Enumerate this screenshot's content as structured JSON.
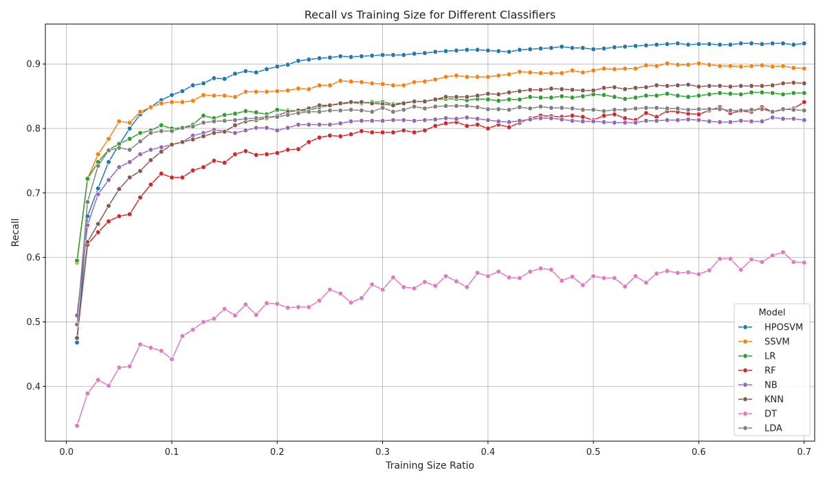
{
  "chart_data": {
    "type": "line",
    "title": "Recall vs Training Size for Different Classifiers",
    "xlabel": "Training Size Ratio",
    "ylabel": "Recall",
    "xlim": [
      -0.02,
      0.71
    ],
    "ylim": [
      0.315,
      0.962
    ],
    "xticks": [
      0.0,
      0.1,
      0.2,
      0.3,
      0.4,
      0.5,
      0.6,
      0.7
    ],
    "xtick_labels": [
      "0.0",
      "0.1",
      "0.2",
      "0.3",
      "0.4",
      "0.5",
      "0.6",
      "0.7"
    ],
    "yticks": [
      0.4,
      0.5,
      0.6,
      0.7,
      0.8,
      0.9
    ],
    "ytick_labels": [
      "0.4",
      "0.5",
      "0.6",
      "0.7",
      "0.8",
      "0.9"
    ],
    "grid": true,
    "legend": {
      "title": "Model",
      "placement": "bottom-right"
    },
    "x": [
      0.01,
      0.02,
      0.03,
      0.04,
      0.05,
      0.06,
      0.07,
      0.08,
      0.09,
      0.1,
      0.11,
      0.12,
      0.13,
      0.14,
      0.15,
      0.16,
      0.17,
      0.18,
      0.19,
      0.2,
      0.21,
      0.22,
      0.23,
      0.24,
      0.25,
      0.26,
      0.27,
      0.28,
      0.29,
      0.3,
      0.31,
      0.32,
      0.33,
      0.34,
      0.35,
      0.36,
      0.37,
      0.38,
      0.39,
      0.4,
      0.41,
      0.42,
      0.43,
      0.44,
      0.45,
      0.46,
      0.47,
      0.48,
      0.49,
      0.5,
      0.51,
      0.52,
      0.53,
      0.54,
      0.55,
      0.56,
      0.57,
      0.58,
      0.59,
      0.6,
      0.61,
      0.62,
      0.63,
      0.64,
      0.65,
      0.66,
      0.67,
      0.68,
      0.69,
      0.7
    ],
    "series": [
      {
        "name": "HPOSVM",
        "color": "#1f77b4",
        "values": [
          0.468,
          0.664,
          0.707,
          0.748,
          0.775,
          0.8,
          0.822,
          0.834,
          0.844,
          0.852,
          0.858,
          0.867,
          0.87,
          0.878,
          0.877,
          0.885,
          0.889,
          0.887,
          0.892,
          0.896,
          0.899,
          0.905,
          0.907,
          0.909,
          0.91,
          0.912,
          0.911,
          0.912,
          0.913,
          0.914,
          0.914,
          0.914,
          0.916,
          0.917,
          0.919,
          0.92,
          0.921,
          0.922,
          0.922,
          0.921,
          0.92,
          0.919,
          0.922,
          0.923,
          0.924,
          0.925,
          0.927,
          0.925,
          0.925,
          0.923,
          0.924,
          0.926,
          0.927,
          0.928,
          0.929,
          0.93,
          0.931,
          0.932,
          0.93,
          0.931,
          0.931,
          0.93,
          0.93,
          0.932,
          0.932,
          0.931,
          0.932,
          0.932,
          0.93,
          0.932
        ]
      },
      {
        "name": "SSVM",
        "color": "#ff7f0e",
        "values": [
          0.592,
          0.722,
          0.76,
          0.784,
          0.811,
          0.809,
          0.826,
          0.833,
          0.839,
          0.841,
          0.841,
          0.843,
          0.852,
          0.851,
          0.851,
          0.849,
          0.857,
          0.857,
          0.857,
          0.858,
          0.859,
          0.862,
          0.861,
          0.867,
          0.867,
          0.874,
          0.873,
          0.872,
          0.87,
          0.869,
          0.867,
          0.867,
          0.872,
          0.873,
          0.876,
          0.88,
          0.882,
          0.88,
          0.88,
          0.88,
          0.882,
          0.884,
          0.888,
          0.887,
          0.886,
          0.886,
          0.886,
          0.89,
          0.887,
          0.89,
          0.893,
          0.892,
          0.893,
          0.893,
          0.898,
          0.897,
          0.901,
          0.899,
          0.899,
          0.901,
          0.899,
          0.897,
          0.897,
          0.896,
          0.897,
          0.898,
          0.896,
          0.897,
          0.894,
          0.893
        ]
      },
      {
        "name": "LR",
        "color": "#2ca02c",
        "values": [
          0.595,
          0.722,
          0.748,
          0.767,
          0.776,
          0.784,
          0.793,
          0.797,
          0.805,
          0.8,
          0.801,
          0.806,
          0.82,
          0.816,
          0.821,
          0.823,
          0.827,
          0.825,
          0.822,
          0.829,
          0.828,
          0.827,
          0.828,
          0.833,
          0.836,
          0.838,
          0.84,
          0.839,
          0.841,
          0.841,
          0.838,
          0.84,
          0.842,
          0.842,
          0.845,
          0.846,
          0.846,
          0.844,
          0.846,
          0.845,
          0.843,
          0.845,
          0.845,
          0.849,
          0.848,
          0.848,
          0.85,
          0.848,
          0.85,
          0.853,
          0.852,
          0.849,
          0.846,
          0.848,
          0.851,
          0.851,
          0.854,
          0.851,
          0.849,
          0.851,
          0.853,
          0.855,
          0.854,
          0.853,
          0.856,
          0.856,
          0.855,
          0.853,
          0.855,
          0.855
        ]
      },
      {
        "name": "RF",
        "color": "#d62728",
        "values": [
          0.475,
          0.62,
          0.639,
          0.656,
          0.664,
          0.667,
          0.693,
          0.713,
          0.73,
          0.724,
          0.724,
          0.735,
          0.74,
          0.75,
          0.747,
          0.76,
          0.765,
          0.759,
          0.76,
          0.762,
          0.767,
          0.768,
          0.779,
          0.786,
          0.789,
          0.788,
          0.791,
          0.796,
          0.794,
          0.794,
          0.794,
          0.797,
          0.794,
          0.797,
          0.804,
          0.808,
          0.81,
          0.804,
          0.806,
          0.8,
          0.806,
          0.802,
          0.809,
          0.816,
          0.82,
          0.819,
          0.818,
          0.82,
          0.818,
          0.813,
          0.82,
          0.822,
          0.816,
          0.813,
          0.824,
          0.818,
          0.827,
          0.826,
          0.823,
          0.822,
          0.828,
          0.833,
          0.824,
          0.827,
          0.826,
          0.833,
          0.826,
          0.829,
          0.831,
          0.841
        ]
      },
      {
        "name": "NB",
        "color": "#9467bd",
        "values": [
          0.51,
          0.65,
          0.698,
          0.72,
          0.74,
          0.748,
          0.76,
          0.767,
          0.771,
          0.775,
          0.779,
          0.789,
          0.793,
          0.798,
          0.796,
          0.793,
          0.797,
          0.801,
          0.801,
          0.797,
          0.801,
          0.806,
          0.806,
          0.806,
          0.806,
          0.808,
          0.811,
          0.812,
          0.812,
          0.812,
          0.813,
          0.813,
          0.812,
          0.813,
          0.814,
          0.816,
          0.815,
          0.817,
          0.815,
          0.813,
          0.811,
          0.81,
          0.812,
          0.814,
          0.816,
          0.816,
          0.814,
          0.812,
          0.811,
          0.811,
          0.81,
          0.809,
          0.809,
          0.809,
          0.812,
          0.812,
          0.813,
          0.813,
          0.814,
          0.813,
          0.811,
          0.81,
          0.81,
          0.812,
          0.811,
          0.811,
          0.817,
          0.815,
          0.815,
          0.813
        ]
      },
      {
        "name": "KNN",
        "color": "#8c564b",
        "values": [
          0.475,
          0.624,
          0.652,
          0.68,
          0.706,
          0.724,
          0.734,
          0.751,
          0.764,
          0.775,
          0.779,
          0.783,
          0.788,
          0.793,
          0.795,
          0.805,
          0.811,
          0.813,
          0.816,
          0.82,
          0.826,
          0.828,
          0.831,
          0.836,
          0.836,
          0.839,
          0.841,
          0.841,
          0.839,
          0.838,
          0.836,
          0.839,
          0.842,
          0.842,
          0.845,
          0.849,
          0.849,
          0.849,
          0.851,
          0.854,
          0.853,
          0.856,
          0.858,
          0.86,
          0.86,
          0.862,
          0.861,
          0.86,
          0.859,
          0.859,
          0.863,
          0.864,
          0.861,
          0.863,
          0.864,
          0.867,
          0.866,
          0.867,
          0.868,
          0.865,
          0.866,
          0.866,
          0.865,
          0.866,
          0.866,
          0.866,
          0.867,
          0.87,
          0.871,
          0.87
        ]
      },
      {
        "name": "DT",
        "color": "#e377c2",
        "values": [
          0.339,
          0.389,
          0.41,
          0.401,
          0.429,
          0.431,
          0.465,
          0.46,
          0.455,
          0.442,
          0.478,
          0.488,
          0.5,
          0.505,
          0.52,
          0.51,
          0.527,
          0.511,
          0.529,
          0.528,
          0.522,
          0.523,
          0.523,
          0.533,
          0.55,
          0.544,
          0.53,
          0.537,
          0.558,
          0.55,
          0.569,
          0.554,
          0.552,
          0.562,
          0.556,
          0.571,
          0.563,
          0.554,
          0.576,
          0.571,
          0.578,
          0.569,
          0.568,
          0.578,
          0.583,
          0.581,
          0.564,
          0.57,
          0.557,
          0.571,
          0.568,
          0.568,
          0.555,
          0.571,
          0.561,
          0.575,
          0.579,
          0.576,
          0.577,
          0.574,
          0.58,
          0.598,
          0.598,
          0.581,
          0.597,
          0.593,
          0.603,
          0.608,
          0.593,
          0.592
        ]
      },
      {
        "name": "LDA",
        "color": "#7f7f7f",
        "values": [
          0.496,
          0.686,
          0.742,
          0.766,
          0.77,
          0.767,
          0.78,
          0.793,
          0.796,
          0.796,
          0.801,
          0.803,
          0.809,
          0.811,
          0.812,
          0.813,
          0.815,
          0.816,
          0.818,
          0.818,
          0.821,
          0.824,
          0.826,
          0.826,
          0.828,
          0.828,
          0.829,
          0.828,
          0.826,
          0.832,
          0.826,
          0.829,
          0.834,
          0.831,
          0.834,
          0.835,
          0.835,
          0.835,
          0.833,
          0.83,
          0.83,
          0.829,
          0.833,
          0.831,
          0.834,
          0.832,
          0.832,
          0.831,
          0.829,
          0.829,
          0.827,
          0.829,
          0.829,
          0.831,
          0.832,
          0.832,
          0.831,
          0.831,
          0.829,
          0.83,
          0.83,
          0.83,
          0.828,
          0.828,
          0.829,
          0.83,
          0.826,
          0.83,
          0.829,
          0.828
        ]
      }
    ]
  }
}
